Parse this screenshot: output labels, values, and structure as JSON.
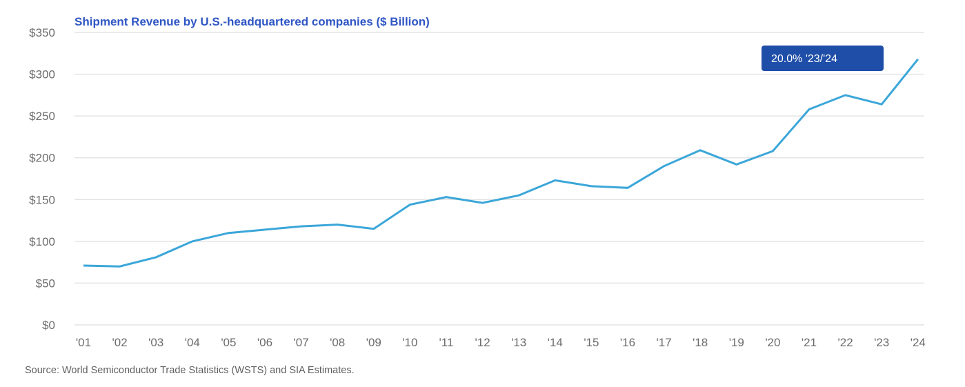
{
  "chart_data": {
    "type": "line",
    "title": "Shipment Revenue by U.S.-headquartered companies ($ Billion)",
    "xlabel": "",
    "ylabel": "",
    "categories": [
      "'01",
      "'02",
      "'03",
      "'04",
      "'05",
      "'06",
      "'07",
      "'08",
      "'09",
      "'10",
      "'11",
      "'12",
      "'13",
      "'14",
      "'15",
      "'16",
      "'17",
      "'18",
      "'19",
      "'20",
      "'21",
      "'22",
      "'23",
      "'24"
    ],
    "series": [
      {
        "name": "Shipment Revenue",
        "color": "#3ba6d9",
        "values": [
          71,
          70,
          81,
          100,
          110,
          114,
          118,
          120,
          115,
          144,
          153,
          146,
          155,
          173,
          166,
          164,
          190,
          209,
          192,
          208,
          258,
          275,
          264,
          318
        ]
      }
    ],
    "ylim": [
      0,
      350
    ],
    "yticks": [
      0,
      50,
      100,
      150,
      200,
      250,
      300,
      350
    ],
    "ytick_labels": [
      "$0",
      "$50",
      "$100",
      "$150",
      "$200",
      "$250",
      "$300",
      "$350"
    ],
    "grid": true,
    "legend": "none",
    "annotations": [
      {
        "text": "20.0% '23/'24",
        "placement": "top-right",
        "bg_color": "#1f4ea8"
      }
    ],
    "source": "Source: World Semiconductor Trade Statistics (WSTS) and SIA Estimates."
  },
  "colors": {
    "title": "#2f56c4",
    "line": "#3ba6d9",
    "grid": "#e4e4e4",
    "tick": "#6b6b6b",
    "badge": "#1f4ea8"
  }
}
